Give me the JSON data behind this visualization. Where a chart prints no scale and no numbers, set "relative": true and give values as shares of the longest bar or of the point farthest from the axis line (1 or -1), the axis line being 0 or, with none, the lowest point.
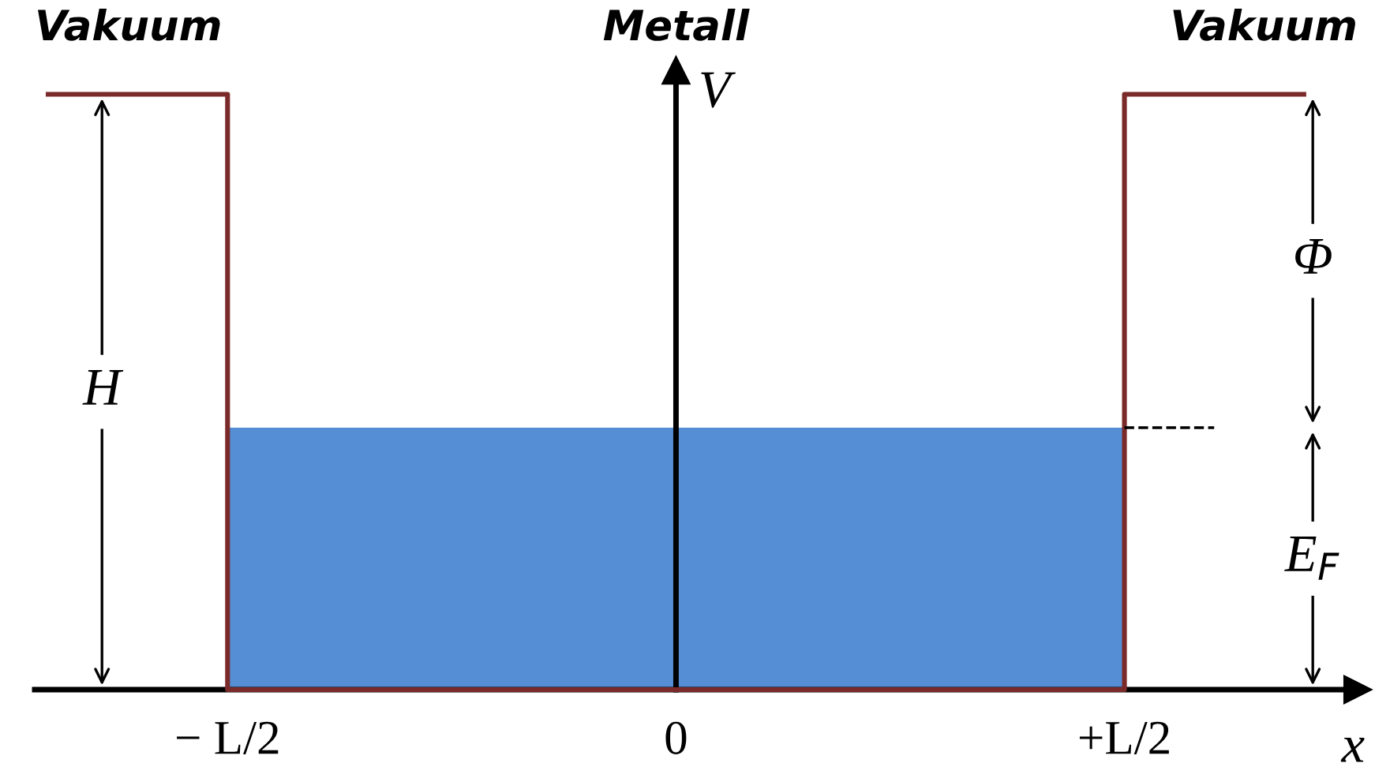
{
  "chart_data": {
    "type": "step",
    "relative": true,
    "ylabel": "V",
    "xlabel": "x",
    "categories": [
      null,
      null,
      "− L/2",
      null,
      null,
      null,
      null,
      "0",
      null,
      null,
      null,
      null,
      "+L/2",
      null,
      null
    ],
    "series": [
      {
        "type": "area",
        "color": "#558ed5",
        "values": [
          null,
          null,
          0.44,
          0.44,
          0.44,
          0.44,
          0.44,
          0.44,
          0.44,
          0.44,
          0.44,
          0.44,
          0.44,
          null,
          null
        ]
      },
      {
        "color": "#7b2a2a",
        "values": [
          1,
          1,
          0,
          0,
          0,
          0,
          0,
          0,
          0,
          0,
          0,
          0,
          1,
          1,
          1
        ]
      },
      {
        "type": "line",
        "color": "#000000",
        "line_style": "dashed",
        "values": [
          null,
          null,
          null,
          null,
          null,
          null,
          null,
          null,
          null,
          null,
          null,
          null,
          0.44,
          0.44,
          null
        ]
      }
    ],
    "annotations": [
      "Vakuum",
      "Metall",
      "Vakuum",
      "H",
      "Φ",
      "E$_{F}$"
    ]
  }
}
